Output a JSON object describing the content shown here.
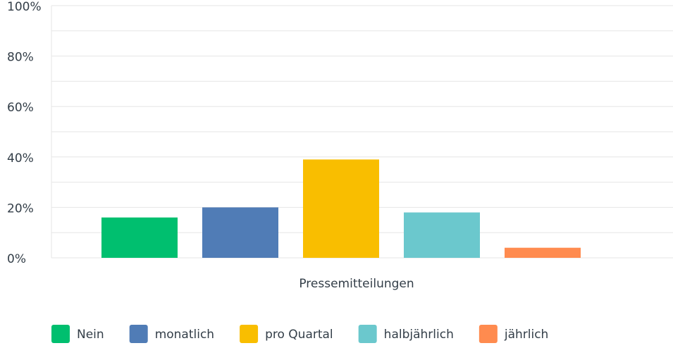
{
  "chart_data": {
    "type": "bar",
    "categories": [
      "Pressemitteilungen"
    ],
    "series": [
      {
        "name": "Nein",
        "color": "#00bf6f",
        "values": [
          16
        ]
      },
      {
        "name": "monatlich",
        "color": "#507cb6",
        "values": [
          20
        ]
      },
      {
        "name": "pro Quartal",
        "color": "#f9be00",
        "values": [
          39
        ]
      },
      {
        "name": "halbjährlich",
        "color": "#6bc8cd",
        "values": [
          18
        ]
      },
      {
        "name": "jährlich",
        "color": "#ff8b4f",
        "values": [
          4
        ]
      }
    ],
    "ylim": [
      0,
      100
    ],
    "yticks": [
      {
        "value": 0,
        "label": "0%"
      },
      {
        "value": 20,
        "label": "20%"
      },
      {
        "value": 40,
        "label": "40%"
      },
      {
        "value": 60,
        "label": "60%"
      },
      {
        "value": 80,
        "label": "80%"
      },
      {
        "value": 100,
        "label": "100%"
      }
    ],
    "minor_yticks": [
      10,
      30,
      50,
      70,
      90
    ],
    "grid": true,
    "legend": "bottom"
  }
}
